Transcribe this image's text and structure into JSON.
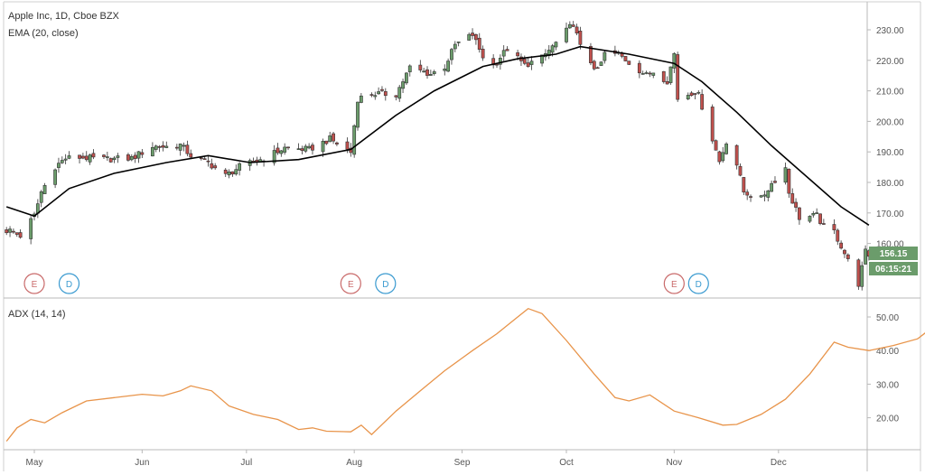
{
  "chart_data": {
    "type": "candlestick",
    "title": "Apple Inc, 1D, Cboe BZX",
    "overlay_label": "EMA (20, close)",
    "indicator_label": "ADX (14, 14)",
    "price_axis": {
      "ticks": [
        "230.00",
        "220.00",
        "210.00",
        "200.00",
        "190.00",
        "180.00",
        "170.00",
        "160.00"
      ],
      "range": [
        148,
        234
      ]
    },
    "adx_axis": {
      "ticks": [
        "50.00",
        "40.00",
        "30.00",
        "20.00"
      ],
      "range": [
        10,
        55
      ]
    },
    "x_axis": {
      "labels": [
        "May",
        "Jun",
        "Jul",
        "Aug",
        "Sep",
        "Oct",
        "Nov",
        "Dec"
      ]
    },
    "last_price": "156.15",
    "countdown": "06:15:21",
    "colors": {
      "up": "#6b9c6b",
      "down": "#c0504d",
      "ema": "#000000",
      "adx": "#e8944a",
      "price_tag": "#6b9c6b"
    },
    "events": [
      {
        "label": "E",
        "type": "earnings",
        "date": "2018-05-01",
        "color": "#c96a6a"
      },
      {
        "label": "D",
        "type": "dividend",
        "date": "2018-05-11",
        "color": "#3a9ad0"
      },
      {
        "label": "E",
        "type": "earnings",
        "date": "2018-07-31",
        "color": "#c96a6a"
      },
      {
        "label": "D",
        "type": "dividend",
        "date": "2018-08-10",
        "color": "#3a9ad0"
      },
      {
        "label": "E",
        "type": "earnings",
        "date": "2018-11-01",
        "color": "#c96a6a"
      },
      {
        "label": "D",
        "type": "dividend",
        "date": "2018-11-08",
        "color": "#3a9ad0"
      }
    ],
    "price_path": [
      [
        "2018-04-24",
        164.2
      ],
      [
        "2018-04-27",
        162.5
      ],
      [
        "2018-05-01",
        169.1
      ],
      [
        "2018-05-03",
        176.9
      ],
      [
        "2018-05-07",
        185.2
      ],
      [
        "2018-05-10",
        187.9
      ],
      [
        "2018-05-14",
        188.2
      ],
      [
        "2018-05-21",
        187.6
      ],
      [
        "2018-05-29",
        187.9
      ],
      [
        "2018-06-04",
        191.8
      ],
      [
        "2018-06-08",
        191.7
      ],
      [
        "2018-06-12",
        192.3
      ],
      [
        "2018-06-15",
        188.8
      ],
      [
        "2018-06-20",
        186.5
      ],
      [
        "2018-06-25",
        182.2
      ],
      [
        "2018-06-29",
        185.1
      ],
      [
        "2018-07-06",
        187.9
      ],
      [
        "2018-07-12",
        191.3
      ],
      [
        "2018-07-19",
        190.8
      ],
      [
        "2018-07-25",
        194.2
      ],
      [
        "2018-07-31",
        189.9
      ],
      [
        "2018-08-02",
        207.4
      ],
      [
        "2018-08-06",
        209.1
      ],
      [
        "2018-08-13",
        208.9
      ],
      [
        "2018-08-17",
        217.6
      ],
      [
        "2018-08-23",
        215.5
      ],
      [
        "2018-08-27",
        217.9
      ],
      [
        "2018-08-30",
        225.0
      ],
      [
        "2018-09-04",
        228.4
      ],
      [
        "2018-09-07",
        221.3
      ],
      [
        "2018-09-10",
        218.3
      ],
      [
        "2018-09-14",
        223.8
      ],
      [
        "2018-09-19",
        218.4
      ],
      [
        "2018-09-24",
        220.8
      ],
      [
        "2018-09-28",
        225.7
      ],
      [
        "2018-10-03",
        232.1
      ],
      [
        "2018-10-05",
        224.3
      ],
      [
        "2018-10-10",
        216.4
      ],
      [
        "2018-10-12",
        222.1
      ],
      [
        "2018-10-16",
        222.0
      ],
      [
        "2018-10-19",
        219.3
      ],
      [
        "2018-10-24",
        215.1
      ],
      [
        "2018-10-26",
        216.3
      ],
      [
        "2018-10-30",
        213.3
      ],
      [
        "2018-11-01",
        222.2
      ],
      [
        "2018-11-02",
        207.5
      ],
      [
        "2018-11-07",
        209.9
      ],
      [
        "2018-11-08",
        208.5
      ],
      [
        "2018-11-12",
        194.2
      ],
      [
        "2018-11-14",
        186.8
      ],
      [
        "2018-11-16",
        193.5
      ],
      [
        "2018-11-19",
        185.9
      ],
      [
        "2018-11-21",
        176.9
      ],
      [
        "2018-11-26",
        174.6
      ],
      [
        "2018-11-29",
        179.6
      ],
      [
        "2018-12-03",
        184.8
      ],
      [
        "2018-12-04",
        176.7
      ],
      [
        "2018-12-07",
        168.5
      ],
      [
        "2018-12-12",
        169.1
      ],
      [
        "2018-12-14",
        165.5
      ],
      [
        "2018-12-17",
        163.9
      ],
      [
        "2018-12-20",
        156.8
      ],
      [
        "2018-12-24",
        146.8
      ],
      [
        "2018-12-26",
        157.2
      ],
      [
        "2018-12-27",
        156.2
      ]
    ],
    "ema": [
      [
        "2018-04-23",
        172.0
      ],
      [
        "2018-05-01",
        169.0
      ],
      [
        "2018-05-11",
        178.0
      ],
      [
        "2018-05-24",
        183.0
      ],
      [
        "2018-06-08",
        186.5
      ],
      [
        "2018-06-20",
        188.8
      ],
      [
        "2018-07-02",
        186.5
      ],
      [
        "2018-07-16",
        187.5
      ],
      [
        "2018-07-31",
        190.8
      ],
      [
        "2018-08-13",
        202.0
      ],
      [
        "2018-08-24",
        210.0
      ],
      [
        "2018-09-07",
        218.0
      ],
      [
        "2018-09-17",
        220.5
      ],
      [
        "2018-09-28",
        222.0
      ],
      [
        "2018-10-05",
        224.5
      ],
      [
        "2018-10-19",
        222.0
      ],
      [
        "2018-11-01",
        219.0
      ],
      [
        "2018-11-09",
        213.0
      ],
      [
        "2018-11-19",
        203.0
      ],
      [
        "2018-11-29",
        192.0
      ],
      [
        "2018-12-10",
        181.0
      ],
      [
        "2018-12-19",
        172.0
      ],
      [
        "2018-12-27",
        166.0
      ]
    ],
    "adx": [
      [
        "2018-04-23",
        13.0
      ],
      [
        "2018-04-26",
        17.0
      ],
      [
        "2018-04-30",
        19.5
      ],
      [
        "2018-05-04",
        18.5
      ],
      [
        "2018-05-09",
        21.5
      ],
      [
        "2018-05-16",
        25.0
      ],
      [
        "2018-05-24",
        26.0
      ],
      [
        "2018-06-01",
        27.0
      ],
      [
        "2018-06-07",
        26.5
      ],
      [
        "2018-06-12",
        28.0
      ],
      [
        "2018-06-15",
        29.5
      ],
      [
        "2018-06-21",
        28.0
      ],
      [
        "2018-06-26",
        23.5
      ],
      [
        "2018-07-03",
        21.0
      ],
      [
        "2018-07-10",
        19.5
      ],
      [
        "2018-07-16",
        16.5
      ],
      [
        "2018-07-20",
        17.0
      ],
      [
        "2018-07-24",
        16.0
      ],
      [
        "2018-07-31",
        15.8
      ],
      [
        "2018-08-03",
        17.8
      ],
      [
        "2018-08-06",
        15.0
      ],
      [
        "2018-08-13",
        22.0
      ],
      [
        "2018-08-20",
        28.0
      ],
      [
        "2018-08-27",
        34.0
      ],
      [
        "2018-09-04",
        40.0
      ],
      [
        "2018-09-11",
        45.0
      ],
      [
        "2018-09-17",
        50.0
      ],
      [
        "2018-09-20",
        52.5
      ],
      [
        "2018-09-24",
        51.0
      ],
      [
        "2018-10-01",
        43.0
      ],
      [
        "2018-10-09",
        33.0
      ],
      [
        "2018-10-15",
        26.0
      ],
      [
        "2018-10-19",
        25.0
      ],
      [
        "2018-10-25",
        26.8
      ],
      [
        "2018-11-01",
        22.0
      ],
      [
        "2018-11-08",
        20.0
      ],
      [
        "2018-11-15",
        17.8
      ],
      [
        "2018-11-19",
        18.0
      ],
      [
        "2018-11-26",
        21.0
      ],
      [
        "2018-12-03",
        25.5
      ],
      [
        "2018-12-10",
        33.0
      ],
      [
        "2018-12-17",
        42.5
      ],
      [
        "2018-12-21",
        41.0
      ],
      [
        "2018-12-27",
        40.0
      ],
      [
        "2019-01-03",
        41.5
      ],
      [
        "2019-01-10",
        43.5
      ],
      [
        "2019-01-15",
        47.5
      ],
      [
        "2019-01-18",
        47.8
      ]
    ]
  }
}
